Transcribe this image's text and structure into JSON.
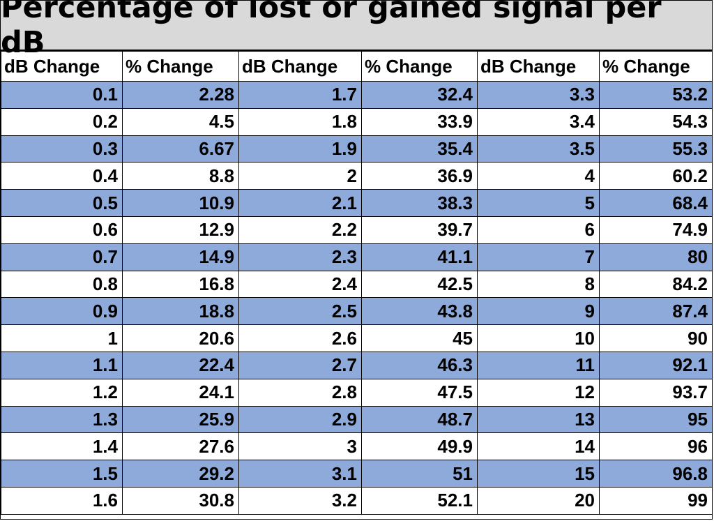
{
  "title": "Percentage of lost or gained signal per dB",
  "headers": [
    "dB Change",
    "% Change",
    "dB Change",
    "% Change",
    "dB Change",
    "% Change"
  ],
  "band_color": "#8eaadb",
  "header_bg": "#d9d9d9",
  "rows": [
    [
      "0.1",
      "2.28",
      "1.7",
      "32.4",
      "3.3",
      "53.2"
    ],
    [
      "0.2",
      "4.5",
      "1.8",
      "33.9",
      "3.4",
      "54.3"
    ],
    [
      "0.3",
      "6.67",
      "1.9",
      "35.4",
      "3.5",
      "55.3"
    ],
    [
      "0.4",
      "8.8",
      "2",
      "36.9",
      "4",
      "60.2"
    ],
    [
      "0.5",
      "10.9",
      "2.1",
      "38.3",
      "5",
      "68.4"
    ],
    [
      "0.6",
      "12.9",
      "2.2",
      "39.7",
      "6",
      "74.9"
    ],
    [
      "0.7",
      "14.9",
      "2.3",
      "41.1",
      "7",
      "80"
    ],
    [
      "0.8",
      "16.8",
      "2.4",
      "42.5",
      "8",
      "84.2"
    ],
    [
      "0.9",
      "18.8",
      "2.5",
      "43.8",
      "9",
      "87.4"
    ],
    [
      "1",
      "20.6",
      "2.6",
      "45",
      "10",
      "90"
    ],
    [
      "1.1",
      "22.4",
      "2.7",
      "46.3",
      "11",
      "92.1"
    ],
    [
      "1.2",
      "24.1",
      "2.8",
      "47.5",
      "12",
      "93.7"
    ],
    [
      "1.3",
      "25.9",
      "2.9",
      "48.7",
      "13",
      "95"
    ],
    [
      "1.4",
      "27.6",
      "3",
      "49.9",
      "14",
      "96"
    ],
    [
      "1.5",
      "29.2",
      "3.1",
      "51",
      "15",
      "96.8"
    ],
    [
      "1.6",
      "30.8",
      "3.2",
      "52.1",
      "20",
      "99"
    ]
  ]
}
